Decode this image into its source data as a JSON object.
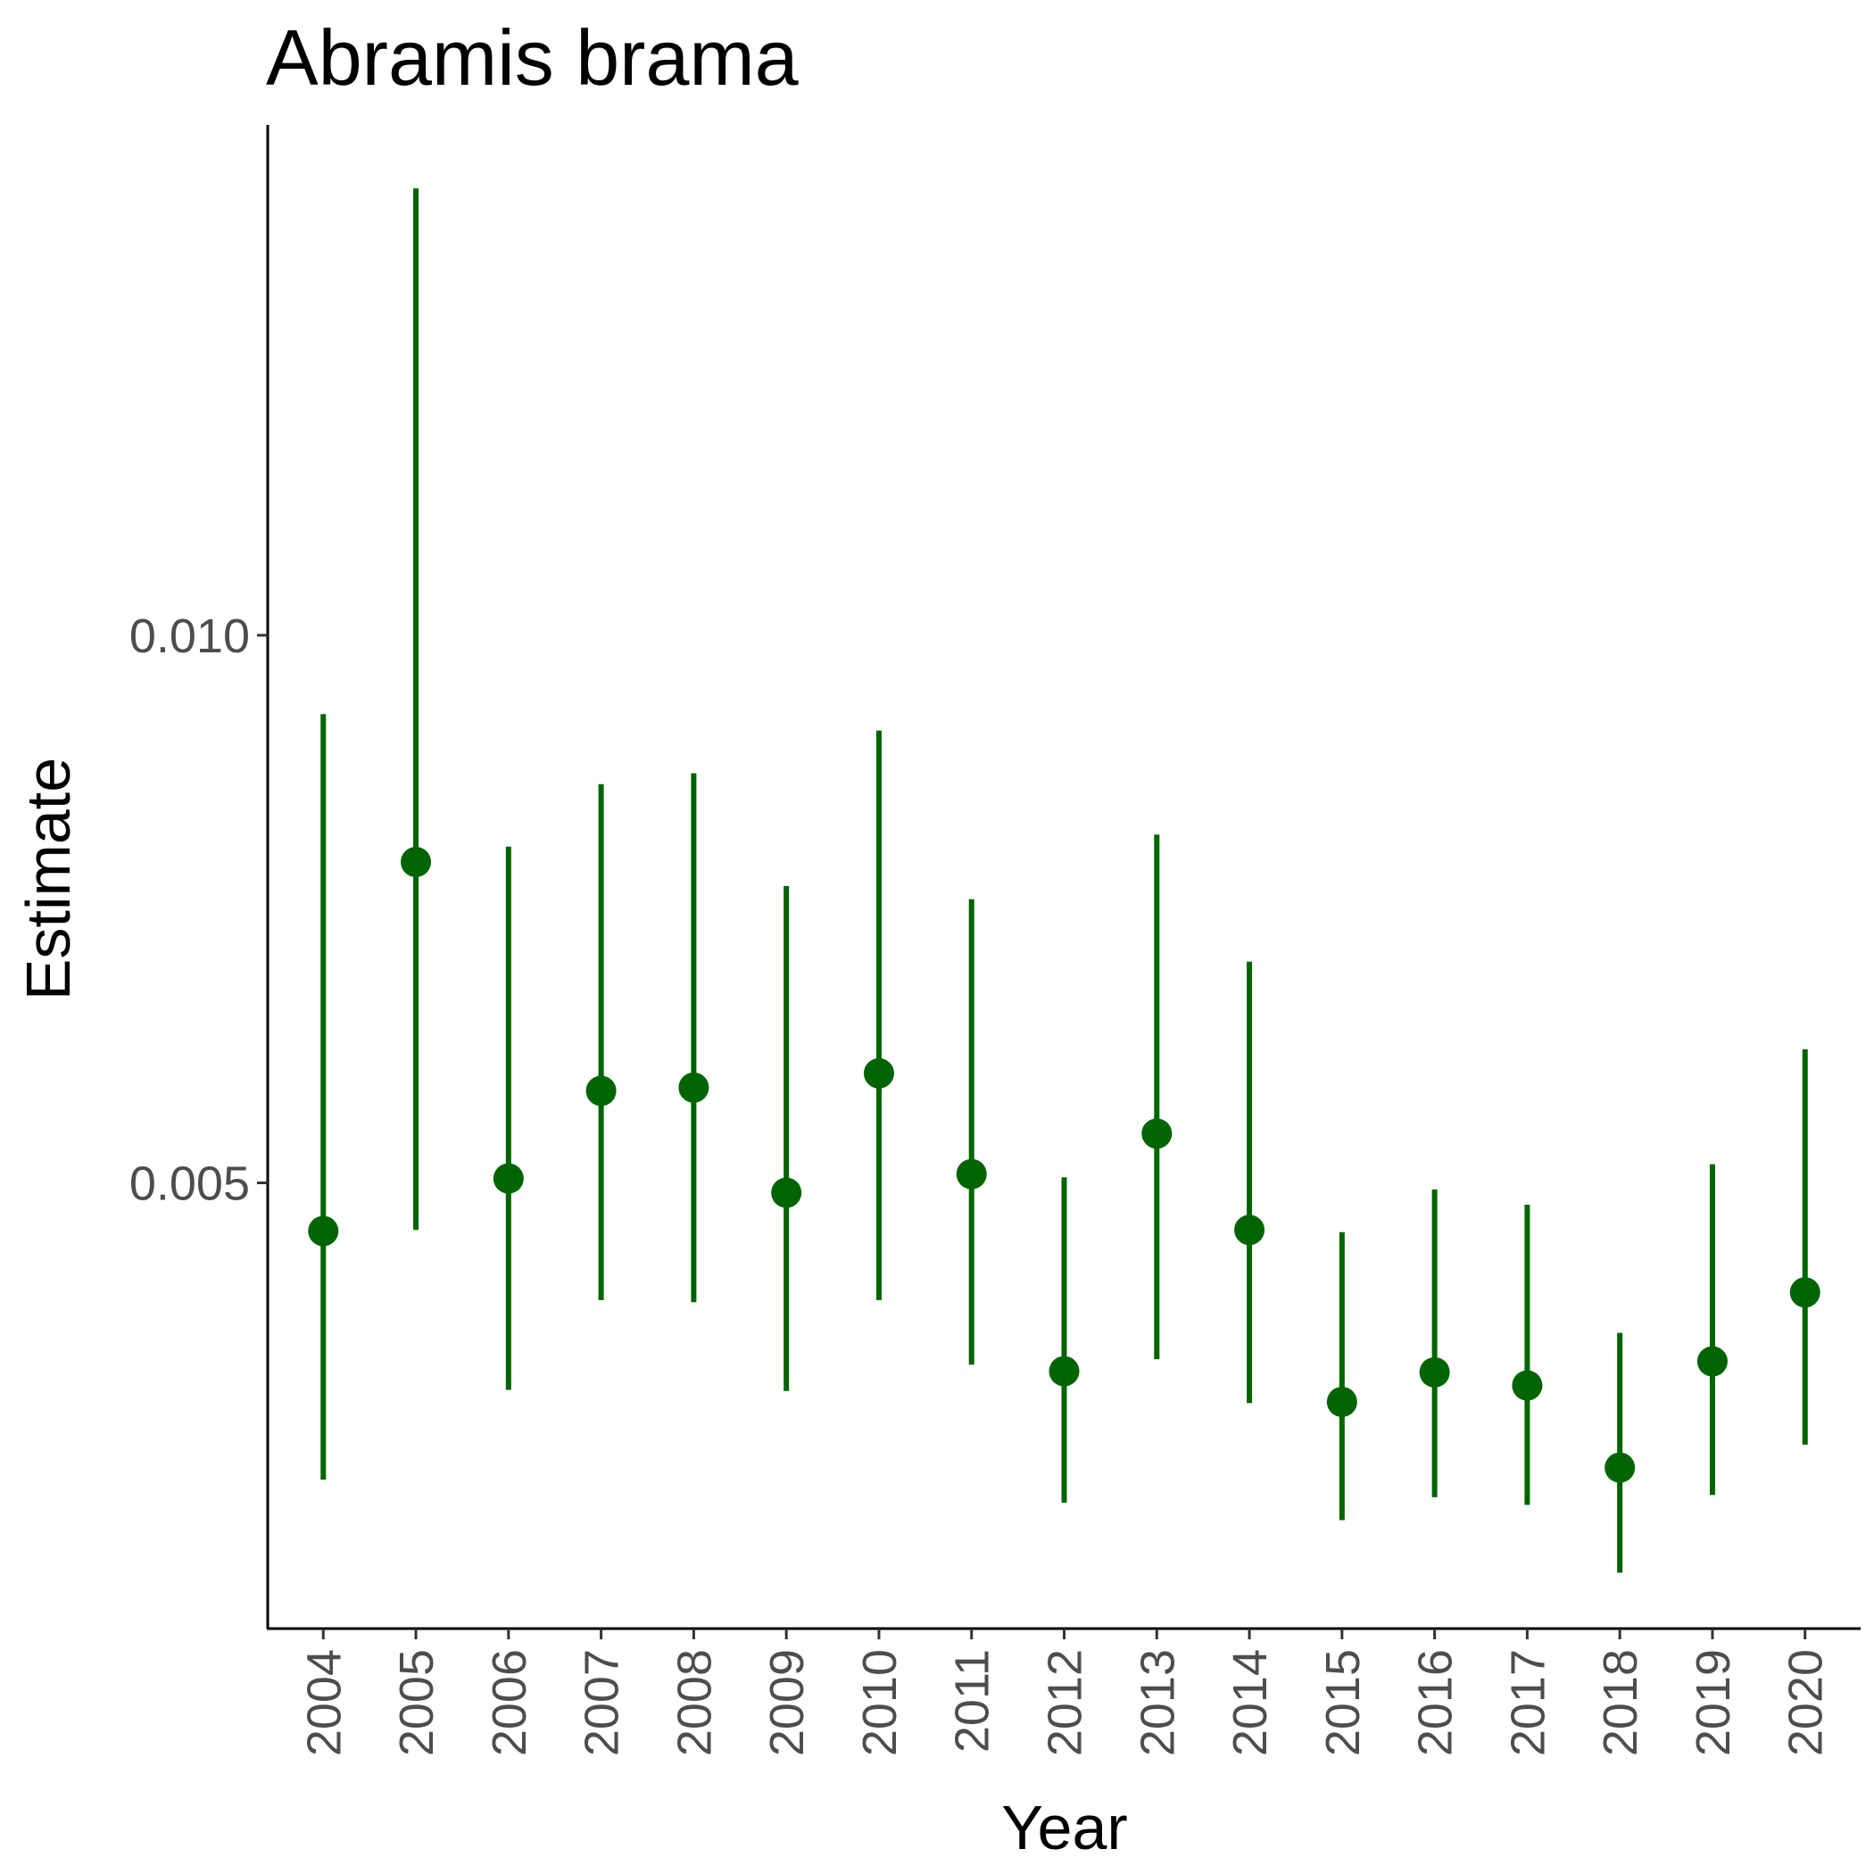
{
  "chart_data": {
    "type": "scatter",
    "title": "Abramis brama",
    "xlabel": "Year",
    "ylabel": "Estimate",
    "categories": [
      "2004",
      "2005",
      "2006",
      "2007",
      "2008",
      "2009",
      "2010",
      "2011",
      "2012",
      "2013",
      "2014",
      "2015",
      "2016",
      "2017",
      "2018",
      "2019",
      "2020"
    ],
    "series": [
      {
        "values": [
          0.00456,
          0.00793,
          0.00504,
          0.00584,
          0.00587,
          0.00491,
          0.006,
          0.00508,
          0.00328,
          0.00545,
          0.00457,
          0.003,
          0.00327,
          0.00315,
          0.0024,
          0.00337,
          0.004
        ],
        "lower": [
          0.00229,
          0.00457,
          0.00311,
          0.00393,
          0.00391,
          0.0031,
          0.00393,
          0.00334,
          0.00208,
          0.00339,
          0.00299,
          0.00192,
          0.00213,
          0.00206,
          0.00144,
          0.00215,
          0.00261
        ],
        "upper": [
          0.00928,
          0.01408,
          0.00807,
          0.00864,
          0.00874,
          0.00771,
          0.00913,
          0.00759,
          0.00505,
          0.00818,
          0.00702,
          0.00455,
          0.00494,
          0.0048,
          0.00363,
          0.00517,
          0.00622
        ]
      }
    ],
    "yticks": [
      0.005,
      0.01
    ],
    "ytick_labels": [
      "0.005",
      "0.010"
    ],
    "ylim": [
      0.00093,
      0.01466
    ],
    "grid": false,
    "legend": "none",
    "color": "#006400"
  }
}
